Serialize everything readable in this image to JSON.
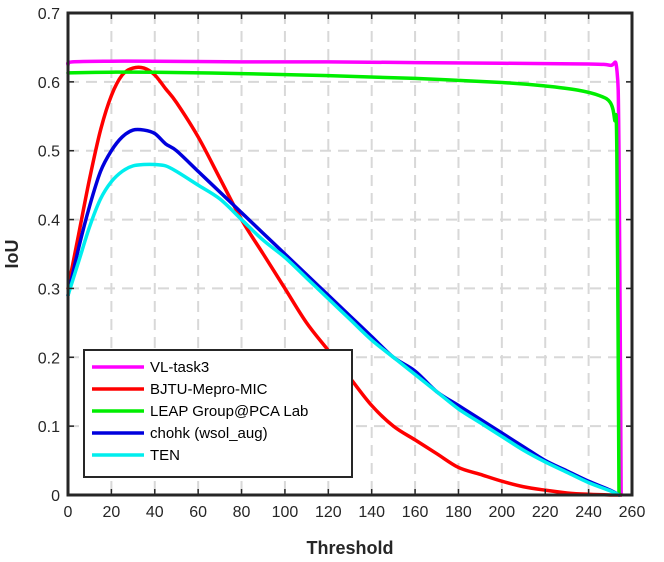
{
  "chart_data": {
    "type": "line",
    "title": "",
    "xlabel": "Threshold",
    "ylabel": "IoU",
    "xlim": [
      0,
      260
    ],
    "ylim": [
      0,
      0.7
    ],
    "xticks": [
      0,
      20,
      40,
      60,
      80,
      100,
      120,
      140,
      160,
      180,
      200,
      220,
      240,
      260
    ],
    "yticks": [
      0,
      0.1,
      0.2,
      0.3,
      0.4,
      0.5,
      0.6,
      0.7
    ],
    "xtick_labels": [
      "0",
      "20",
      "40",
      "60",
      "80",
      "100",
      "120",
      "140",
      "160",
      "180",
      "200",
      "220",
      "240",
      "260"
    ],
    "ytick_labels": [
      "0",
      "0.1",
      "0.2",
      "0.3",
      "0.4",
      "0.5",
      "0.6",
      "0.7"
    ],
    "grid": true,
    "legend_position": "bottom-left",
    "series": [
      {
        "name": "VL-task3",
        "color": "#ff00ff",
        "x": [
          0,
          2,
          20,
          40,
          80,
          120,
          160,
          200,
          240,
          250,
          253,
          254,
          255
        ],
        "y": [
          0.625,
          0.629,
          0.63,
          0.63,
          0.629,
          0.629,
          0.628,
          0.627,
          0.626,
          0.624,
          0.618,
          0.5,
          0.0
        ]
      },
      {
        "name": "BJTU-Mepro-MIC",
        "color": "#ff0000",
        "x": [
          0,
          5,
          10,
          15,
          20,
          25,
          30,
          35,
          40,
          45,
          50,
          60,
          70,
          80,
          90,
          100,
          110,
          120,
          130,
          140,
          150,
          160,
          170,
          180,
          190,
          200,
          210,
          220,
          230,
          240,
          250,
          255
        ],
        "y": [
          0.3,
          0.38,
          0.46,
          0.53,
          0.58,
          0.61,
          0.62,
          0.62,
          0.61,
          0.59,
          0.57,
          0.52,
          0.46,
          0.4,
          0.35,
          0.3,
          0.25,
          0.21,
          0.17,
          0.13,
          0.1,
          0.08,
          0.06,
          0.04,
          0.03,
          0.02,
          0.012,
          0.007,
          0.003,
          0.001,
          0.0,
          0.0
        ]
      },
      {
        "name": "LEAP Group@PCA Lab",
        "color": "#00ee00",
        "x": [
          0,
          20,
          40,
          80,
          120,
          160,
          200,
          220,
          235,
          245,
          250,
          252,
          253,
          254
        ],
        "y": [
          0.613,
          0.614,
          0.614,
          0.612,
          0.609,
          0.605,
          0.599,
          0.594,
          0.588,
          0.58,
          0.57,
          0.545,
          0.5,
          0.0
        ]
      },
      {
        "name": "chohk (wsol_aug)",
        "color": "#0000dd",
        "x": [
          0,
          5,
          10,
          15,
          20,
          25,
          30,
          35,
          40,
          45,
          50,
          60,
          70,
          80,
          90,
          100,
          110,
          120,
          130,
          140,
          150,
          160,
          170,
          180,
          190,
          200,
          210,
          220,
          230,
          240,
          250,
          254
        ],
        "y": [
          0.29,
          0.36,
          0.42,
          0.47,
          0.5,
          0.52,
          0.53,
          0.53,
          0.525,
          0.51,
          0.5,
          0.47,
          0.44,
          0.41,
          0.38,
          0.35,
          0.32,
          0.29,
          0.26,
          0.23,
          0.2,
          0.18,
          0.15,
          0.13,
          0.11,
          0.09,
          0.07,
          0.05,
          0.035,
          0.02,
          0.007,
          0.0
        ]
      },
      {
        "name": "TEN",
        "color": "#00eeee",
        "x": [
          0,
          5,
          10,
          15,
          20,
          25,
          30,
          35,
          40,
          45,
          50,
          60,
          70,
          80,
          90,
          100,
          110,
          120,
          130,
          140,
          150,
          160,
          170,
          180,
          190,
          200,
          210,
          220,
          230,
          240,
          250,
          254
        ],
        "y": [
          0.29,
          0.34,
          0.39,
          0.43,
          0.455,
          0.47,
          0.478,
          0.48,
          0.48,
          0.478,
          0.47,
          0.45,
          0.43,
          0.4,
          0.37,
          0.345,
          0.315,
          0.285,
          0.255,
          0.225,
          0.2,
          0.175,
          0.15,
          0.125,
          0.105,
          0.085,
          0.065,
          0.048,
          0.033,
          0.018,
          0.006,
          0.0
        ]
      }
    ]
  }
}
